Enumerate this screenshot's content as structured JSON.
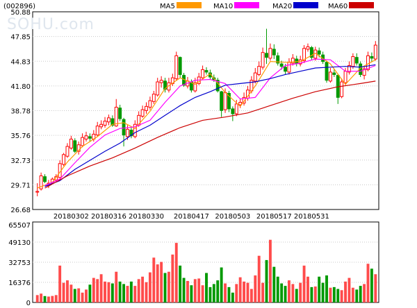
{
  "chart_data": [
    {
      "type": "candlestick",
      "code_label": "(002896)",
      "watermark": "SOHU.com",
      "y_ticks": [
        50.88,
        47.85,
        44.83,
        41.8,
        38.78,
        35.76,
        32.73,
        29.71,
        26.68
      ],
      "ylim": [
        26.68,
        50.88
      ],
      "x_ticks": [
        "20180302",
        "20180316",
        "20180330",
        "20180417",
        "20180503",
        "20180517",
        "20180531"
      ],
      "legend": [
        {
          "name": "MA5",
          "color": "#ff9900"
        },
        {
          "name": "MA10",
          "color": "#ff00ff"
        },
        {
          "name": "MA20",
          "color": "#0000cc"
        },
        {
          "name": "MA60",
          "color": "#cc0000"
        }
      ],
      "candles": [
        [
          28.8,
          28.9,
          28.3,
          29.9
        ],
        [
          29.2,
          30.8,
          29.0,
          31.2
        ],
        [
          30.7,
          30.1,
          29.9,
          31.0
        ],
        [
          29.6,
          29.9,
          29.3,
          30.3
        ],
        [
          29.9,
          30.4,
          29.8,
          30.6
        ],
        [
          30.3,
          30.7,
          30.1,
          31.0
        ],
        [
          30.6,
          32.3,
          30.5,
          32.7
        ],
        [
          32.2,
          33.4,
          32.0,
          33.6
        ],
        [
          33.2,
          34.4,
          33.0,
          34.8
        ],
        [
          34.2,
          35.3,
          34.0,
          35.7
        ],
        [
          35.1,
          33.8,
          33.6,
          35.4
        ],
        [
          33.8,
          34.6,
          33.4,
          35.0
        ],
        [
          34.5,
          35.5,
          34.3,
          36.0
        ],
        [
          35.3,
          35.7,
          35.0,
          36.2
        ],
        [
          35.6,
          35.4,
          35.0,
          36.0
        ],
        [
          35.3,
          35.9,
          35.0,
          36.4
        ],
        [
          35.8,
          36.9,
          35.6,
          37.4
        ],
        [
          36.8,
          37.1,
          36.5,
          37.6
        ],
        [
          37.0,
          37.5,
          36.7,
          38.0
        ],
        [
          37.4,
          37.9,
          37.0,
          38.3
        ],
        [
          37.8,
          37.0,
          36.8,
          38.2
        ],
        [
          36.9,
          39.2,
          36.8,
          40.2
        ],
        [
          39.1,
          37.8,
          37.5,
          39.5
        ],
        [
          37.7,
          35.8,
          34.4,
          37.9
        ],
        [
          35.6,
          36.5,
          35.2,
          37.0
        ],
        [
          36.4,
          35.7,
          35.4,
          36.8
        ],
        [
          35.6,
          37.1,
          35.4,
          37.6
        ],
        [
          37.0,
          38.2,
          36.8,
          38.7
        ],
        [
          38.1,
          38.9,
          37.9,
          39.4
        ],
        [
          38.8,
          39.3,
          38.4,
          39.8
        ],
        [
          39.2,
          40.0,
          38.9,
          40.5
        ],
        [
          39.9,
          40.8,
          39.6,
          41.2
        ],
        [
          40.7,
          42.3,
          40.5,
          42.8
        ],
        [
          42.2,
          42.5,
          41.6,
          43.0
        ],
        [
          42.4,
          41.4,
          41.0,
          42.8
        ],
        [
          41.3,
          42.2,
          41.0,
          42.8
        ],
        [
          42.1,
          42.8,
          41.8,
          43.3
        ],
        [
          42.7,
          45.5,
          42.5,
          46.0
        ],
        [
          45.3,
          43.2,
          42.8,
          45.4
        ],
        [
          43.1,
          41.9,
          41.7,
          43.4
        ],
        [
          41.8,
          42.4,
          41.5,
          42.9
        ],
        [
          42.3,
          41.3,
          41.0,
          42.6
        ],
        [
          41.2,
          42.2,
          41.0,
          42.8
        ],
        [
          42.1,
          42.9,
          41.9,
          43.4
        ],
        [
          42.8,
          43.8,
          42.6,
          44.3
        ],
        [
          43.7,
          43.5,
          43.2,
          44.1
        ],
        [
          43.4,
          42.9,
          42.6,
          43.8
        ],
        [
          42.8,
          42.6,
          42.3,
          43.2
        ],
        [
          42.5,
          41.2,
          41.0,
          42.8
        ],
        [
          41.1,
          38.8,
          38.0,
          41.2
        ],
        [
          38.9,
          41.0,
          38.5,
          41.5
        ],
        [
          40.9,
          39.0,
          38.6,
          41.2
        ],
        [
          39.0,
          38.4,
          37.5,
          39.3
        ],
        [
          38.4,
          39.6,
          38.1,
          40.1
        ],
        [
          39.5,
          39.8,
          39.1,
          40.3
        ],
        [
          39.7,
          40.4,
          39.4,
          41.0
        ],
        [
          40.3,
          41.3,
          40.0,
          41.8
        ],
        [
          41.2,
          42.5,
          40.9,
          43.0
        ],
        [
          42.4,
          43.4,
          42.1,
          44.0
        ],
        [
          43.2,
          44.2,
          43.0,
          44.8
        ],
        [
          44.1,
          45.9,
          43.8,
          46.5
        ],
        [
          45.8,
          45.3,
          44.5,
          48.8
        ],
        [
          45.2,
          46.4,
          44.9,
          47.0
        ],
        [
          46.3,
          45.6,
          45.1,
          46.9
        ],
        [
          45.5,
          44.6,
          44.3,
          45.9
        ],
        [
          44.5,
          44.2,
          43.8,
          44.9
        ],
        [
          44.1,
          43.6,
          43.2,
          44.5
        ],
        [
          43.5,
          44.7,
          43.2,
          45.2
        ],
        [
          44.6,
          45.2,
          44.3,
          45.7
        ],
        [
          45.1,
          44.6,
          44.2,
          45.5
        ],
        [
          44.5,
          45.0,
          44.2,
          45.5
        ],
        [
          44.9,
          46.4,
          44.6,
          46.8
        ],
        [
          46.3,
          46.6,
          46.0,
          47.0
        ],
        [
          46.5,
          45.3,
          45.0,
          46.7
        ],
        [
          45.2,
          46.2,
          44.9,
          46.6
        ],
        [
          46.1,
          45.7,
          45.3,
          46.5
        ],
        [
          45.6,
          44.8,
          44.5,
          46.0
        ],
        [
          44.7,
          42.5,
          42.2,
          44.9
        ],
        [
          42.4,
          43.5,
          42.2,
          44.0
        ],
        [
          43.4,
          43.2,
          42.9,
          43.9
        ],
        [
          43.1,
          40.4,
          39.6,
          43.3
        ],
        [
          40.5,
          42.3,
          40.3,
          42.7
        ],
        [
          42.2,
          43.6,
          41.9,
          44.0
        ],
        [
          43.5,
          44.3,
          43.2,
          44.8
        ],
        [
          44.2,
          45.4,
          43.9,
          45.8
        ],
        [
          45.3,
          44.6,
          44.3,
          45.8
        ],
        [
          44.5,
          43.2,
          42.9,
          44.8
        ],
        [
          43.1,
          43.9,
          42.6,
          44.3
        ],
        [
          43.8,
          45.5,
          43.6,
          46.0
        ],
        [
          45.4,
          45.2,
          44.8,
          45.9
        ],
        [
          45.1,
          46.8,
          44.9,
          47.3
        ]
      ],
      "ma": {
        "MA5": [
          [
            0,
            29.3
          ],
          [
            4,
            30.0
          ],
          [
            8,
            32.5
          ],
          [
            12,
            34.4
          ],
          [
            16,
            35.6
          ],
          [
            20,
            37.1
          ],
          [
            23,
            37.3
          ],
          [
            26,
            36.6
          ],
          [
            30,
            38.7
          ],
          [
            34,
            41.5
          ],
          [
            38,
            42.8
          ],
          [
            42,
            42.0
          ],
          [
            46,
            43.3
          ],
          [
            50,
            41.0
          ],
          [
            54,
            39.3
          ],
          [
            58,
            41.8
          ],
          [
            62,
            44.8
          ],
          [
            66,
            44.7
          ],
          [
            70,
            44.8
          ],
          [
            74,
            45.8
          ],
          [
            78,
            44.5
          ],
          [
            82,
            42.0
          ],
          [
            86,
            44.0
          ],
          [
            90,
            45.0
          ]
        ],
        "MA10": [
          [
            2,
            29.6
          ],
          [
            6,
            30.4
          ],
          [
            10,
            32.4
          ],
          [
            14,
            34.3
          ],
          [
            18,
            35.8
          ],
          [
            22,
            36.6
          ],
          [
            26,
            36.8
          ],
          [
            30,
            37.6
          ],
          [
            34,
            39.8
          ],
          [
            38,
            41.8
          ],
          [
            42,
            42.5
          ],
          [
            46,
            42.6
          ],
          [
            50,
            42.1
          ],
          [
            54,
            40.2
          ],
          [
            58,
            40.4
          ],
          [
            62,
            42.8
          ],
          [
            66,
            44.3
          ],
          [
            70,
            44.6
          ],
          [
            74,
            45.1
          ],
          [
            78,
            45.0
          ],
          [
            82,
            43.6
          ],
          [
            86,
            43.6
          ],
          [
            90,
            44.3
          ]
        ],
        "MA20": [
          [
            2,
            29.5
          ],
          [
            6,
            30.2
          ],
          [
            10,
            31.6
          ],
          [
            14,
            32.7
          ],
          [
            18,
            33.8
          ],
          [
            22,
            34.8
          ],
          [
            26,
            36.1
          ],
          [
            30,
            37.0
          ],
          [
            34,
            38.2
          ],
          [
            38,
            39.4
          ],
          [
            42,
            40.4
          ],
          [
            46,
            41.1
          ],
          [
            50,
            41.9
          ],
          [
            54,
            42.1
          ],
          [
            58,
            42.3
          ],
          [
            62,
            42.7
          ],
          [
            66,
            43.2
          ],
          [
            70,
            43.6
          ],
          [
            74,
            44.0
          ],
          [
            78,
            44.1
          ],
          [
            82,
            44.2
          ],
          [
            86,
            44.1
          ],
          [
            90,
            44.4
          ]
        ],
        "MA60": [
          [
            2,
            29.3
          ],
          [
            8,
            30.8
          ],
          [
            14,
            32.0
          ],
          [
            20,
            33.0
          ],
          [
            26,
            34.2
          ],
          [
            32,
            35.5
          ],
          [
            38,
            36.7
          ],
          [
            44,
            37.6
          ],
          [
            50,
            38.0
          ],
          [
            56,
            38.5
          ],
          [
            62,
            39.4
          ],
          [
            68,
            40.3
          ],
          [
            74,
            41.1
          ],
          [
            80,
            41.7
          ],
          [
            86,
            42.1
          ],
          [
            90,
            42.4
          ]
        ]
      }
    },
    {
      "type": "bar",
      "y_ticks": [
        65507,
        49130,
        32753,
        16376,
        0
      ],
      "ylim": [
        0,
        65507
      ],
      "colors": {
        "up": "#ff4b4b",
        "down": "#009900"
      },
      "values": [
        6000,
        7200,
        5200,
        4800,
        5300,
        6000,
        30000,
        16000,
        18000,
        14500,
        11000,
        11500,
        8000,
        10500,
        14500,
        20000,
        19000,
        23000,
        17000,
        16500,
        15500,
        25000,
        17000,
        15000,
        13500,
        17000,
        13500,
        19000,
        21000,
        16500,
        24500,
        36500,
        31000,
        33000,
        24000,
        25000,
        39000,
        48500,
        30000,
        20000,
        17500,
        14000,
        19000,
        19500,
        14000,
        24000,
        12500,
        15000,
        18000,
        28500,
        15500,
        12500,
        8000,
        15000,
        20500,
        17000,
        16000,
        11000,
        22000,
        38000,
        16000,
        34500,
        51000,
        29000,
        21000,
        15500,
        13500,
        18000,
        15000,
        11000,
        16000,
        30000,
        21000,
        12500,
        13000,
        21000,
        16000,
        22000,
        12000,
        12500,
        11000,
        10000,
        17000,
        20000,
        12000,
        10500,
        13500,
        15000,
        31500,
        27500,
        23000
      ]
    }
  ]
}
